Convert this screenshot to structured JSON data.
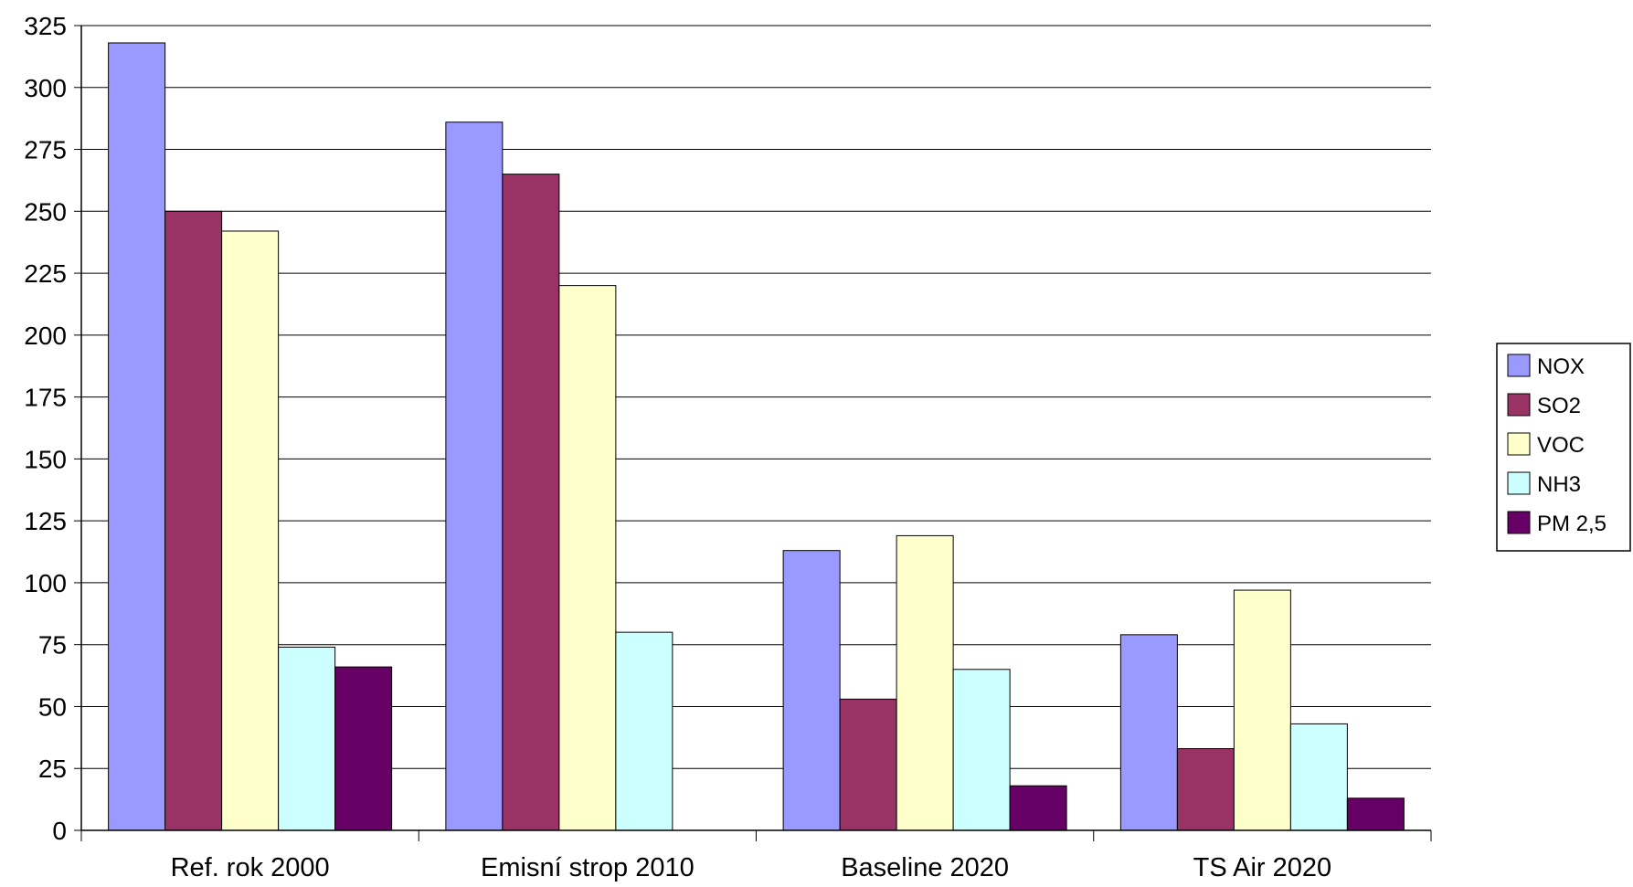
{
  "chart_data": {
    "type": "bar",
    "title": "",
    "xlabel": "",
    "ylabel": "",
    "categories": [
      "Ref. rok 2000",
      "Emisní strop 2010",
      "Baseline 2020",
      "TS Air 2020"
    ],
    "series": [
      {
        "name": "NOX",
        "color": "#9999FF",
        "values": [
          318,
          286,
          113,
          79
        ]
      },
      {
        "name": "SO2",
        "color": "#993366",
        "values": [
          250,
          265,
          53,
          33
        ]
      },
      {
        "name": "VOC",
        "color": "#FFFFCC",
        "values": [
          242,
          220,
          119,
          97
        ]
      },
      {
        "name": "NH3",
        "color": "#CCFFFF",
        "values": [
          74,
          80,
          65,
          43
        ]
      },
      {
        "name": "PM 2,5",
        "color": "#660066",
        "values": [
          66,
          null,
          18,
          13
        ]
      }
    ],
    "ylim": [
      0,
      325
    ],
    "yticks": [
      0,
      25,
      50,
      75,
      100,
      125,
      150,
      175,
      200,
      225,
      250,
      275,
      300,
      325
    ],
    "grid": true,
    "legend_position": "right"
  }
}
